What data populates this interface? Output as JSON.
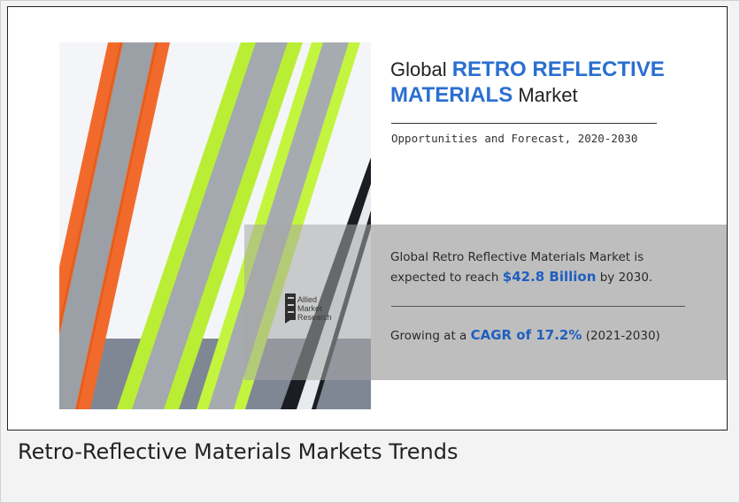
{
  "infographic": {
    "title": {
      "prefix": "Global ",
      "accent_line1": "RETRO REFLECTIVE",
      "accent_line2": "MATERIALS",
      "suffix": " Market"
    },
    "subtitle": "Opportunities and Forecast, 2020-2030",
    "statement1": {
      "line1": "Global Retro Reflective Materials Market is",
      "line2_prefix": "expected to reach ",
      "line2_value": "$42.8 Billion",
      "line2_suffix": " by 2030."
    },
    "statement2": {
      "prefix": "Growing at a ",
      "value": "CAGR of 17.2%",
      "suffix": " (2021-2030)"
    },
    "brand": {
      "line1": "Allied",
      "line2": "Market",
      "line3": "Research"
    },
    "colors": {
      "accent_blue": "#2b6fd1",
      "strap_orange": "#f26a2b",
      "strap_lime": "#bff23a",
      "strap_grey": "#9ea3a8",
      "band_grey": "#c9c9c9"
    }
  },
  "caption": "Retro-Reflective Materials Markets Trends"
}
